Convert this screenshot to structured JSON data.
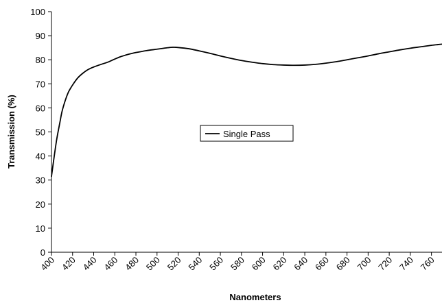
{
  "chart_data": {
    "type": "line",
    "title": "",
    "xlabel": "Nanometers",
    "ylabel": "Transmission (%)",
    "xlim": [
      400,
      770
    ],
    "ylim": [
      0,
      100
    ],
    "x_ticks": [
      400,
      420,
      440,
      460,
      480,
      500,
      520,
      540,
      560,
      580,
      600,
      620,
      640,
      660,
      680,
      700,
      720,
      740,
      760
    ],
    "y_ticks": [
      0,
      10,
      20,
      30,
      40,
      50,
      60,
      70,
      80,
      90,
      100
    ],
    "grid": false,
    "legend": {
      "placement": "center",
      "entries": [
        "Single Pass"
      ]
    },
    "series": [
      {
        "name": "Single Pass",
        "color": "#000000",
        "x": [
          400,
          402,
          405,
          408,
          410,
          413,
          416,
          420,
          425,
          430,
          435,
          440,
          445,
          450,
          455,
          460,
          465,
          470,
          475,
          480,
          490,
          500,
          510,
          515,
          520,
          530,
          540,
          550,
          560,
          570,
          580,
          590,
          600,
          610,
          620,
          630,
          640,
          650,
          660,
          670,
          680,
          690,
          700,
          710,
          720,
          730,
          740,
          750,
          760,
          770
        ],
        "y": [
          31.5,
          38,
          47,
          54,
          58.5,
          63,
          66.5,
          69.5,
          72.5,
          74.5,
          76,
          77,
          77.8,
          78.5,
          79.3,
          80.3,
          81.2,
          81.9,
          82.5,
          83,
          83.8,
          84.4,
          85,
          85.2,
          85.1,
          84.6,
          83.7,
          82.7,
          81.6,
          80.6,
          79.7,
          79,
          78.4,
          78,
          77.8,
          77.7,
          77.8,
          78.1,
          78.6,
          79.2,
          80,
          80.8,
          81.6,
          82.5,
          83.3,
          84.1,
          84.8,
          85.4,
          86,
          86.5
        ]
      }
    ]
  }
}
